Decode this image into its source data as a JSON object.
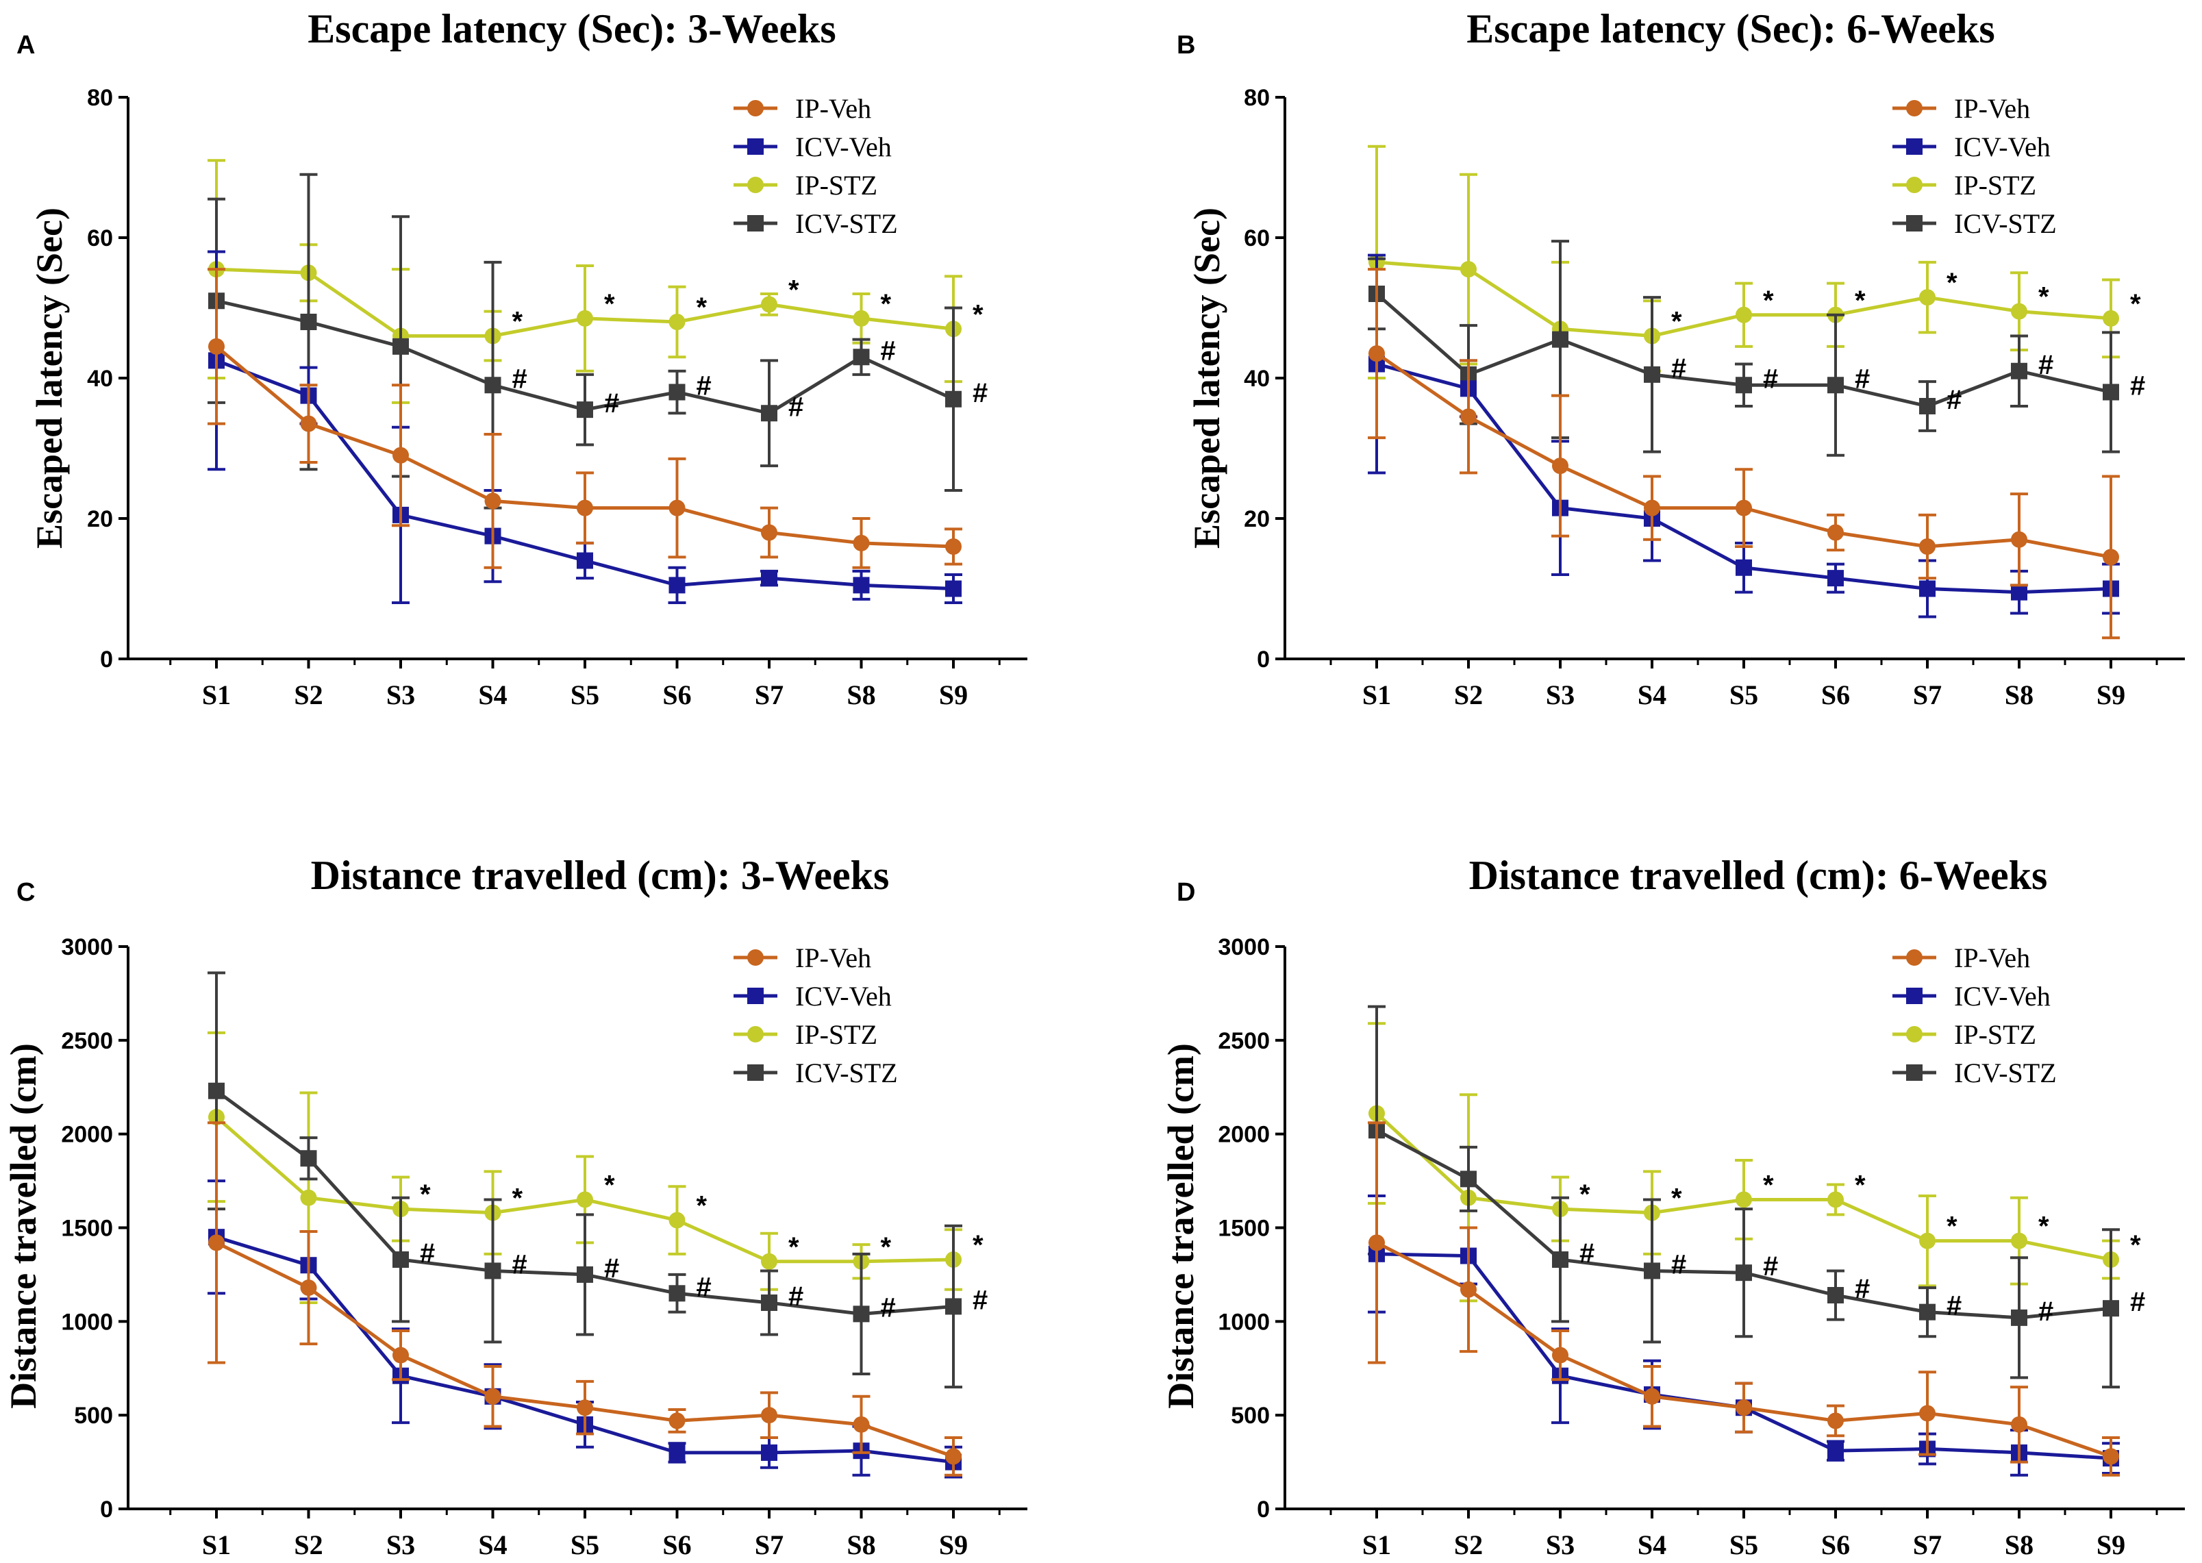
{
  "figure": {
    "colors": {
      "IP-Veh": "#c8651e",
      "ICV-Veh": "#1a1a99",
      "IP-STZ": "#c3cc2a",
      "ICV-STZ": "#3d3d3d",
      "axis": "#000000"
    },
    "markers": {
      "IP-Veh": "circle",
      "ICV-Veh": "square",
      "IP-STZ": "circle",
      "ICV-STZ": "square"
    },
    "significance_symbols": {
      "ip_stz": "*",
      "icv_stz": "#"
    }
  },
  "chart_data": [
    {
      "panel": "A",
      "type": "line",
      "title": "Escape latency (Sec): 3-Weeks",
      "xlabel": "",
      "ylabel": "Escaped latency (Sec)",
      "ylim": [
        0,
        80
      ],
      "yticks": [
        0,
        20,
        40,
        60,
        80
      ],
      "categories": [
        "S1",
        "S2",
        "S3",
        "S4",
        "S5",
        "S6",
        "S7",
        "S8",
        "S9"
      ],
      "legend": [
        "IP-Veh",
        "ICV-Veh",
        "IP-STZ",
        "ICV-STZ"
      ],
      "series": [
        {
          "name": "IP-Veh",
          "values": [
            44.5,
            33.5,
            29,
            22.5,
            21.5,
            21.5,
            18,
            16.5,
            16
          ],
          "errors": [
            11,
            5.5,
            10,
            9.5,
            5,
            7,
            3.5,
            3.5,
            2.5
          ]
        },
        {
          "name": "ICV-Veh",
          "values": [
            42.5,
            37.5,
            20.5,
            17.5,
            14,
            10.5,
            11.5,
            10.5,
            10
          ],
          "errors": [
            15.5,
            4,
            12.5,
            6.5,
            2.5,
            2.5,
            1,
            2,
            2
          ]
        },
        {
          "name": "IP-STZ",
          "values": [
            55.5,
            55,
            46,
            46,
            48.5,
            48,
            50.5,
            48.5,
            47
          ],
          "errors": [
            15.5,
            4,
            9.5,
            3.5,
            7.5,
            5,
            1.5,
            3.5,
            7.5
          ]
        },
        {
          "name": "ICV-STZ",
          "values": [
            51,
            48,
            44.5,
            39,
            35.5,
            38,
            35,
            43,
            37
          ],
          "errors": [
            14.5,
            21,
            18.5,
            17.5,
            5,
            3,
            7.5,
            2.5,
            13
          ]
        }
      ],
      "annotations": [
        {
          "series": "IP-STZ",
          "symbol": "*",
          "at": [
            "S4",
            "S5",
            "S6",
            "S7",
            "S8",
            "S9"
          ]
        },
        {
          "series": "ICV-STZ",
          "symbol": "#",
          "at": [
            "S4",
            "S5",
            "S6",
            "S7",
            "S8",
            "S9"
          ]
        }
      ]
    },
    {
      "panel": "B",
      "type": "line",
      "title": "Escape latency (Sec): 6-Weeks",
      "xlabel": "",
      "ylabel": "Escaped latency (Sec)",
      "ylim": [
        0,
        80
      ],
      "yticks": [
        0,
        20,
        40,
        60,
        80
      ],
      "categories": [
        "S1",
        "S2",
        "S3",
        "S4",
        "S5",
        "S6",
        "S7",
        "S8",
        "S9"
      ],
      "legend": [
        "IP-Veh",
        "ICV-Veh",
        "IP-STZ",
        "ICV-STZ"
      ],
      "series": [
        {
          "name": "IP-Veh",
          "values": [
            43.5,
            34.5,
            27.5,
            21.5,
            21.5,
            18,
            16,
            17,
            14.5
          ],
          "errors": [
            12,
            8,
            10,
            4.5,
            5.5,
            2.5,
            4.5,
            6.5,
            11.5
          ]
        },
        {
          "name": "ICV-Veh",
          "values": [
            42,
            38.5,
            21.5,
            20,
            13,
            11.5,
            10,
            9.5,
            10
          ],
          "errors": [
            15.5,
            4,
            9.5,
            6,
            3.5,
            2,
            4,
            3,
            3.5
          ]
        },
        {
          "name": "IP-STZ",
          "values": [
            56.5,
            55.5,
            47,
            46,
            49,
            49,
            51.5,
            49.5,
            48.5
          ],
          "errors": [
            16.5,
            13.5,
            9.5,
            5,
            4.5,
            4.5,
            5,
            5.5,
            5.5
          ]
        },
        {
          "name": "ICV-STZ",
          "values": [
            52,
            40.5,
            45.5,
            40.5,
            39,
            39,
            36,
            41,
            38
          ],
          "errors": [
            5,
            7,
            14,
            11,
            3,
            10,
            3.5,
            5,
            8.5
          ]
        }
      ],
      "annotations": [
        {
          "series": "IP-STZ",
          "symbol": "*",
          "at": [
            "S4",
            "S5",
            "S6",
            "S7",
            "S8",
            "S9"
          ]
        },
        {
          "series": "ICV-STZ",
          "symbol": "#",
          "at": [
            "S4",
            "S5",
            "S6",
            "S7",
            "S8",
            "S9"
          ]
        }
      ]
    },
    {
      "panel": "C",
      "type": "line",
      "title": "Distance travelled (cm): 3-Weeks",
      "xlabel": "",
      "ylabel": "Distance travelled (cm)",
      "ylim": [
        0,
        3000
      ],
      "yticks": [
        0,
        500,
        1000,
        1500,
        2000,
        2500,
        3000
      ],
      "categories": [
        "S1",
        "S2",
        "S3",
        "S4",
        "S5",
        "S6",
        "S7",
        "S8",
        "S9"
      ],
      "legend": [
        "IP-Veh",
        "ICV-Veh",
        "IP-STZ",
        "ICV-STZ"
      ],
      "series": [
        {
          "name": "IP-Veh",
          "values": [
            1420,
            1180,
            820,
            600,
            540,
            470,
            500,
            450,
            280
          ],
          "errors": [
            640,
            300,
            130,
            160,
            140,
            60,
            120,
            150,
            100
          ]
        },
        {
          "name": "ICV-Veh",
          "values": [
            1450,
            1300,
            710,
            600,
            450,
            300,
            300,
            310,
            250
          ],
          "errors": [
            300,
            180,
            250,
            170,
            120,
            50,
            80,
            130,
            80
          ]
        },
        {
          "name": "IP-STZ",
          "values": [
            2090,
            1660,
            1600,
            1580,
            1650,
            1540,
            1320,
            1320,
            1330
          ],
          "errors": [
            450,
            560,
            170,
            220,
            230,
            180,
            150,
            90,
            160
          ]
        },
        {
          "name": "ICV-STZ",
          "values": [
            2230,
            1870,
            1330,
            1270,
            1250,
            1150,
            1100,
            1040,
            1080
          ],
          "errors": [
            630,
            110,
            330,
            380,
            320,
            100,
            170,
            320,
            430
          ]
        }
      ],
      "annotations": [
        {
          "series": "IP-STZ",
          "symbol": "*",
          "at": [
            "S3",
            "S4",
            "S5",
            "S6",
            "S7",
            "S8",
            "S9"
          ]
        },
        {
          "series": "ICV-STZ",
          "symbol": "#",
          "at": [
            "S3",
            "S4",
            "S5",
            "S6",
            "S7",
            "S8",
            "S9"
          ]
        }
      ]
    },
    {
      "panel": "D",
      "type": "line",
      "title": "Distance travelled (cm): 6-Weeks",
      "xlabel": "",
      "ylabel": "Distance travelled (cm)",
      "ylim": [
        0,
        3000
      ],
      "yticks": [
        0,
        500,
        1000,
        1500,
        2000,
        2500,
        3000
      ],
      "categories": [
        "S1",
        "S2",
        "S3",
        "S4",
        "S5",
        "S6",
        "S7",
        "S8",
        "S9"
      ],
      "legend": [
        "IP-Veh",
        "ICV-Veh",
        "IP-STZ",
        "ICV-STZ"
      ],
      "series": [
        {
          "name": "IP-Veh",
          "values": [
            1420,
            1170,
            820,
            600,
            540,
            470,
            510,
            450,
            280
          ],
          "errors": [
            640,
            330,
            130,
            160,
            130,
            80,
            220,
            200,
            100
          ]
        },
        {
          "name": "ICV-Veh",
          "values": [
            1360,
            1350,
            710,
            610,
            540,
            310,
            320,
            300,
            270
          ],
          "errors": [
            310,
            150,
            250,
            180,
            130,
            50,
            80,
            120,
            80
          ]
        },
        {
          "name": "IP-STZ",
          "values": [
            2110,
            1660,
            1600,
            1580,
            1650,
            1650,
            1430,
            1430,
            1330
          ],
          "errors": [
            480,
            550,
            170,
            220,
            210,
            80,
            240,
            230,
            100
          ]
        },
        {
          "name": "ICV-STZ",
          "values": [
            2020,
            1760,
            1330,
            1270,
            1260,
            1140,
            1050,
            1020,
            1070
          ],
          "errors": [
            660,
            170,
            330,
            380,
            340,
            130,
            130,
            320,
            420
          ]
        }
      ],
      "annotations": [
        {
          "series": "IP-STZ",
          "symbol": "*",
          "at": [
            "S3",
            "S4",
            "S5",
            "S6",
            "S7",
            "S8",
            "S9"
          ]
        },
        {
          "series": "ICV-STZ",
          "symbol": "#",
          "at": [
            "S3",
            "S4",
            "S5",
            "S6",
            "S7",
            "S8",
            "S9"
          ]
        }
      ]
    }
  ]
}
